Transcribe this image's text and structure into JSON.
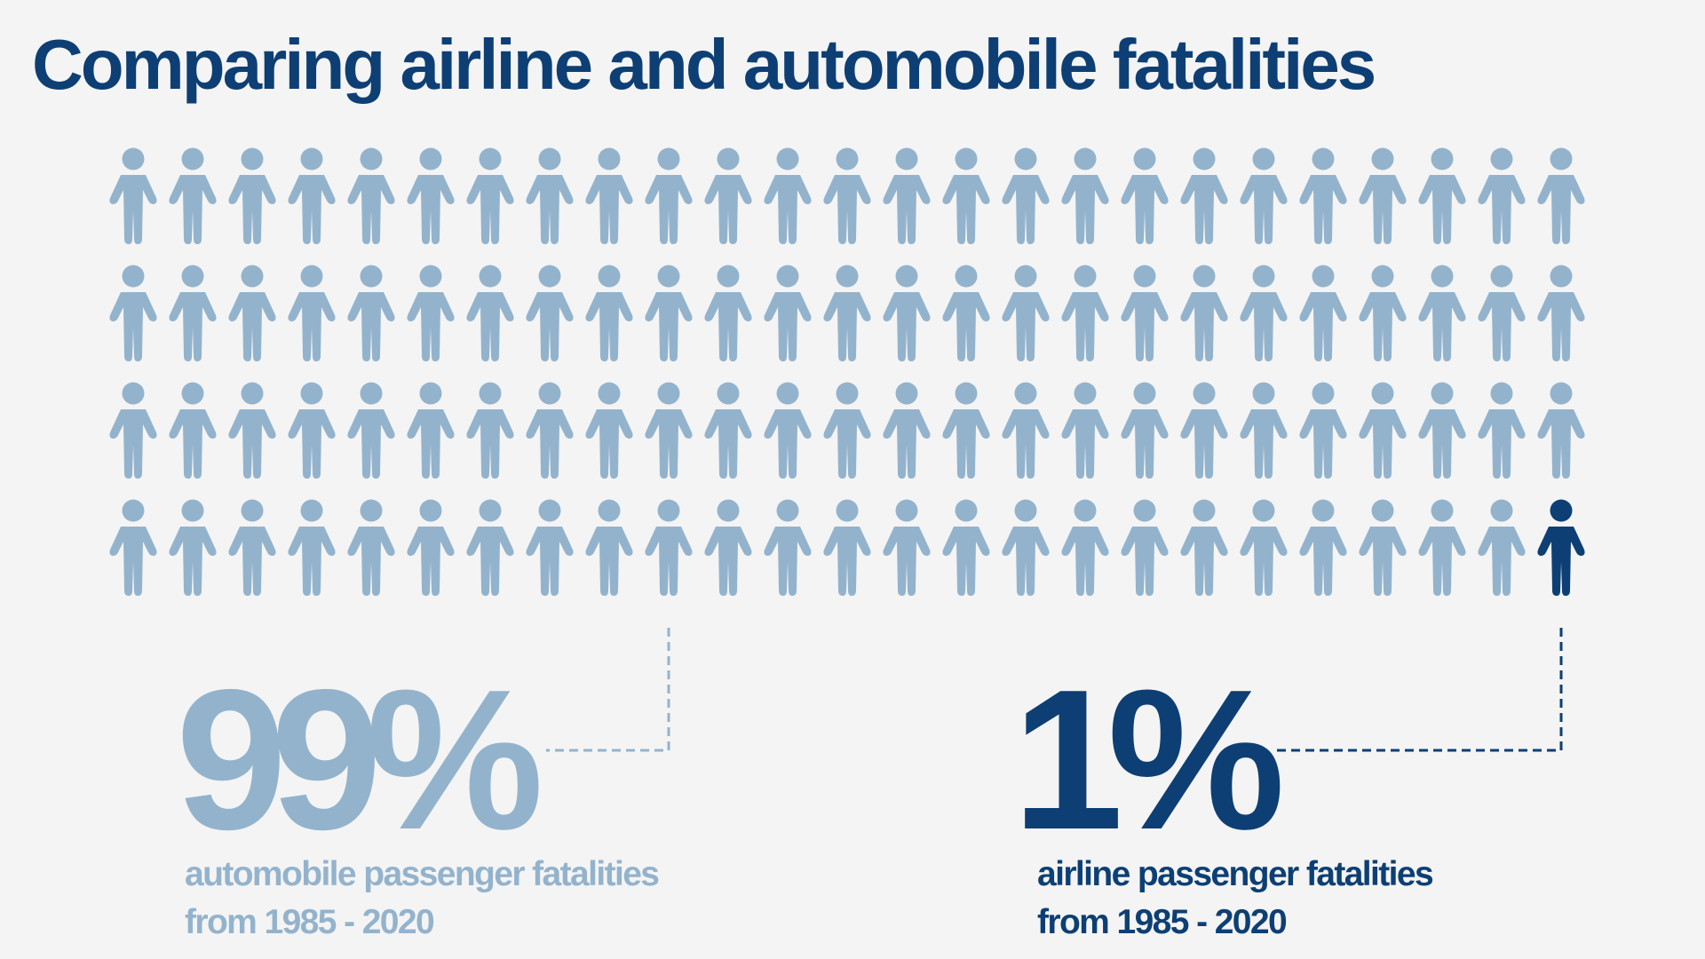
{
  "title": "Comparing airline and automobile fatalities",
  "colors": {
    "background": "#f4f4f4",
    "automobile": "#93b3cd",
    "airline": "#0d3f74",
    "title": "#0d3f74"
  },
  "chart_data": {
    "type": "pictograph",
    "title": "Comparing airline and automobile fatalities",
    "icon": "person-icon",
    "rows": 4,
    "columns": 25,
    "total_icons": 100,
    "series": [
      {
        "name": "automobile passenger fatalities from 1985 - 2020",
        "value": 99,
        "unit": "%",
        "icons": 99,
        "color": "#93b3cd"
      },
      {
        "name": "airline passenger fatalities from 1985 - 2020",
        "value": 1,
        "unit": "%",
        "icons": 1,
        "color": "#0d3f74"
      }
    ]
  },
  "automobile": {
    "percent": "99%",
    "caption_line1": "automobile passenger fatalities",
    "caption_line2": "from 1985 - 2020"
  },
  "airline": {
    "percent": "1%",
    "caption_line1": "airline passenger fatalities",
    "caption_line2": "from 1985 - 2020"
  }
}
